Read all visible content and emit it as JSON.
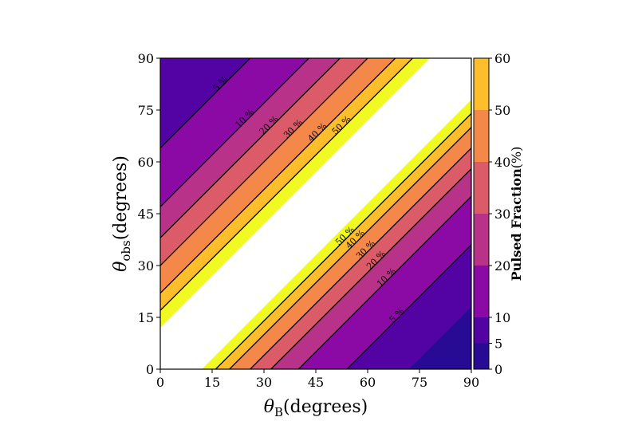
{
  "chart_data": {
    "type": "heatmap",
    "subtype": "filled-contour",
    "xlabel": {
      "symbol": "θ",
      "subscript": "B",
      "text": "(degrees)"
    },
    "ylabel": {
      "symbol": "θ",
      "subscript": "obs",
      "text": "(degrees)"
    },
    "xlim": [
      0,
      90
    ],
    "ylim": [
      0,
      90
    ],
    "xticks": [
      "0",
      "15",
      "30",
      "45",
      "60",
      "75",
      "90"
    ],
    "yticks": [
      "0",
      "15",
      "30",
      "45",
      "60",
      "75",
      "90"
    ],
    "excluded_band": "white region where |θobs − θB| < ~12°",
    "colorbar": {
      "label_bold": "Pulsed Fraction",
      "label_unit": "(%)",
      "ticks": [
        "0",
        "5",
        "10",
        "20",
        "30",
        "40",
        "50",
        "60"
      ],
      "levels": [
        0,
        5,
        10,
        20,
        30,
        40,
        50,
        60
      ],
      "colors": [
        "#280b94",
        "#5302a3",
        "#8b0aa5",
        "#b83289",
        "#db5c68",
        "#f48849",
        "#febd2a",
        "#f0f921"
      ]
    },
    "contour_labels_upper": [
      "5 %",
      "10 %",
      "20 %",
      "30 %",
      "40 %",
      "50 %"
    ],
    "contour_labels_lower": [
      "50 %",
      "40 %",
      "30 %",
      "20 %",
      "10 %",
      "5 %"
    ],
    "gap_width_degrees": 12
  }
}
